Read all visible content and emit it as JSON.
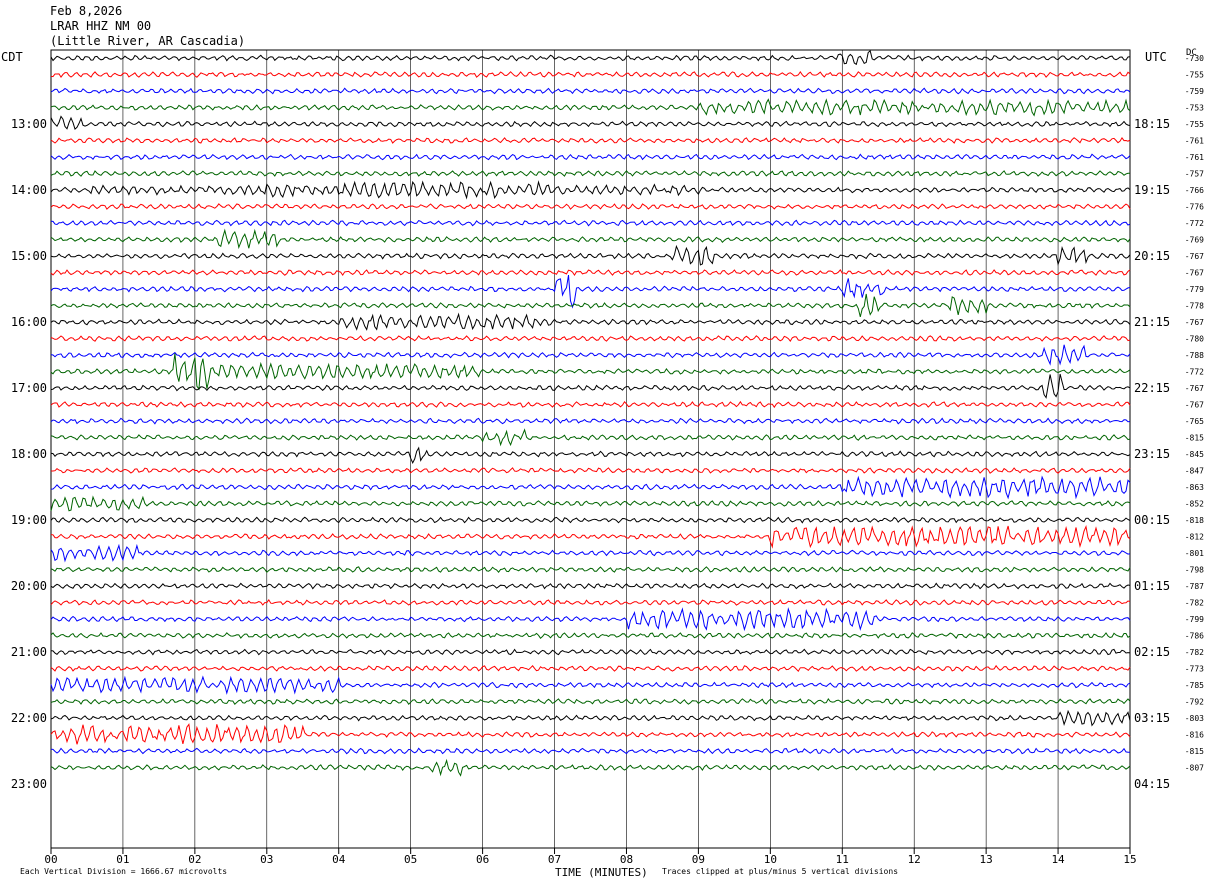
{
  "header": {
    "date": "Feb 8,2026",
    "station": "LRAR HHZ NM 00",
    "location": "(Little River, AR Cascadia)"
  },
  "left_tz": "CDT",
  "right_tz": "UTC",
  "dc_label": "DC",
  "footer": {
    "scale_note": "Each Vertical Division = 1666.67 microvolts",
    "xlabel": "TIME (MINUTES)",
    "clip_note": "Traces clipped at plus/minus 5 vertical divisions"
  },
  "chart_data": {
    "type": "line",
    "x_ticks": [
      "00",
      "01",
      "02",
      "03",
      "04",
      "05",
      "06",
      "07",
      "08",
      "09",
      "10",
      "11",
      "12",
      "13",
      "14",
      "15"
    ],
    "xlim": [
      0,
      15
    ],
    "left_time_labels": [
      "13:00",
      "14:00",
      "15:00",
      "16:00",
      "17:00",
      "18:00",
      "19:00",
      "20:00",
      "21:00",
      "22:00",
      "23:00"
    ],
    "right_time_labels": [
      "18:15",
      "19:15",
      "20:15",
      "21:15",
      "22:15",
      "23:15",
      "00:15",
      "01:15",
      "02:15",
      "03:15",
      "04:15"
    ],
    "dc_offsets": [
      "-730",
      "-755",
      "-759",
      "-753",
      "-755",
      "-761",
      "-761",
      "-757",
      "-766",
      "-776",
      "-772",
      "-769",
      "-767",
      "-767",
      "-779",
      "-778",
      "-767",
      "-780",
      "-788",
      "-772",
      "-767",
      "-767",
      "-765",
      "-815",
      "-845",
      "-847",
      "-863",
      "-852",
      "-818",
      "-812",
      "-801",
      "-798",
      "-787",
      "-782",
      "-799",
      "-786",
      "-782",
      "-773",
      "-785",
      "-792",
      "-803",
      "-816",
      "-815",
      "-807"
    ],
    "trace_colors": [
      "#000000",
      "#ff0000",
      "#0000ff",
      "#006400"
    ],
    "grid": true
  }
}
